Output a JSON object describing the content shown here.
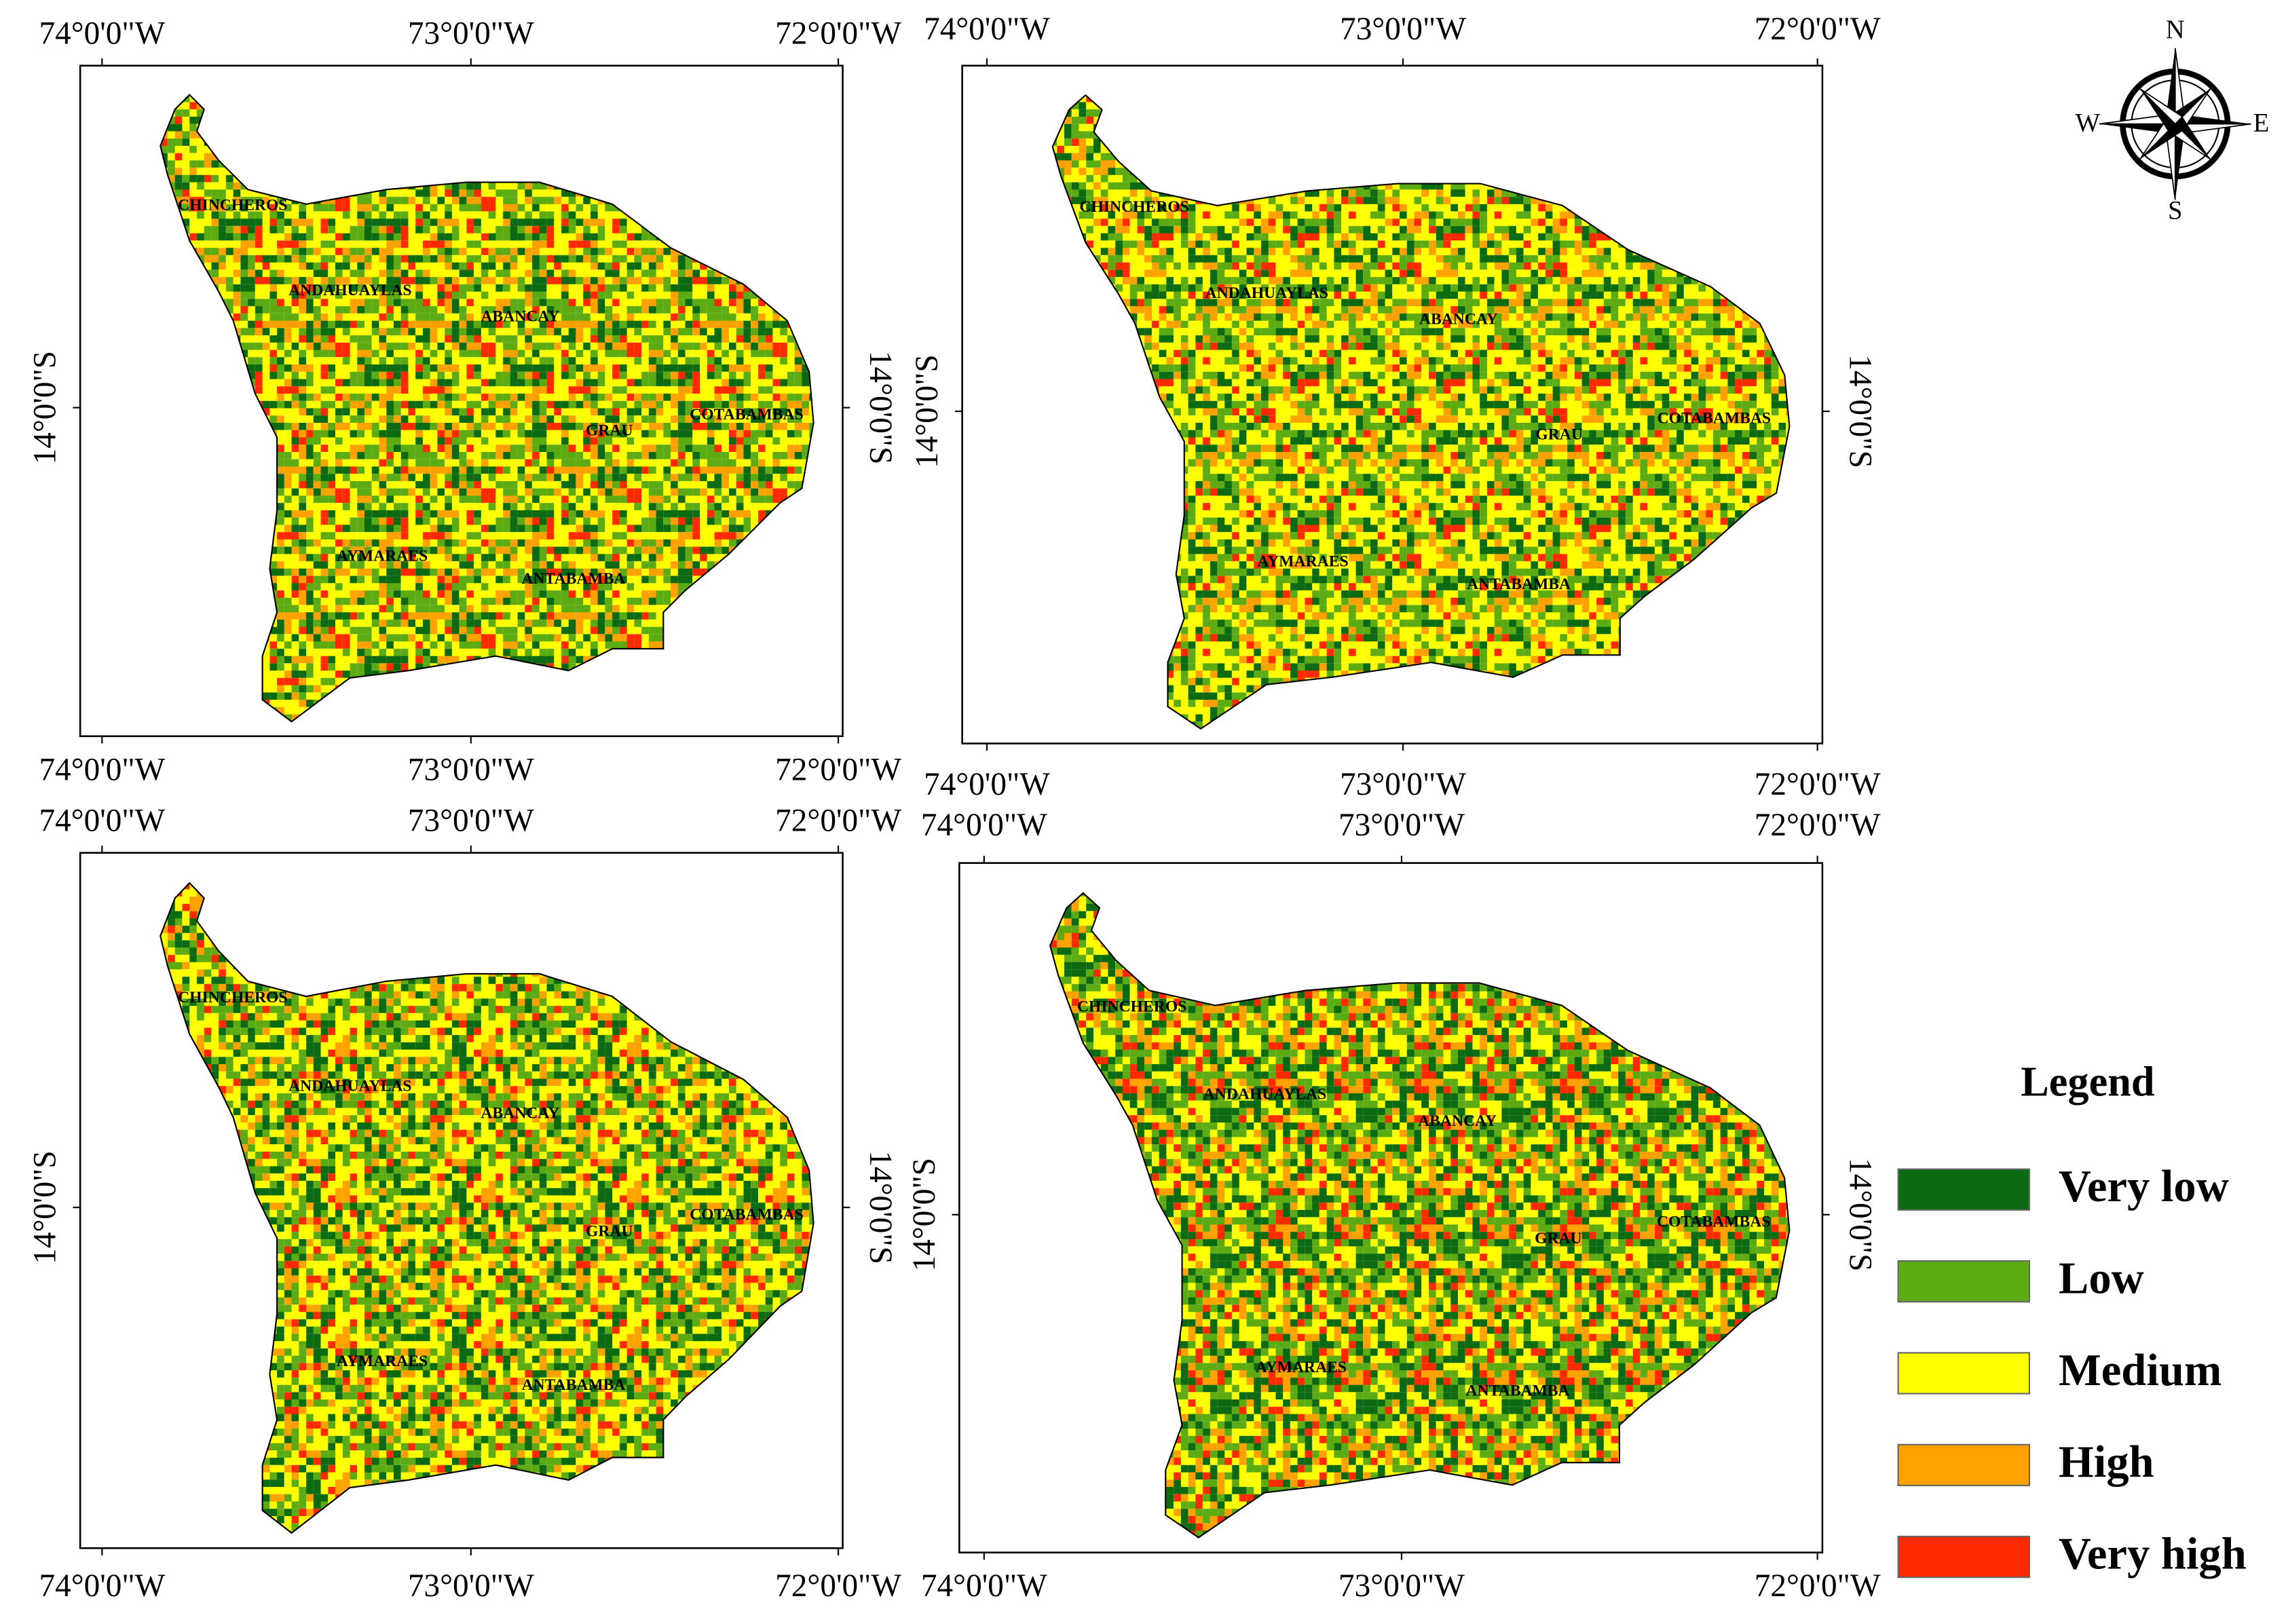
{
  "panels": [
    {
      "lon_top": [
        "74°0'0\"W",
        "73°0'0\"W",
        "72°0'0\"W"
      ],
      "lon_bottom": [
        "74°0'0\"W",
        "73°0'0\"W",
        "72°0'0\"W"
      ],
      "lat_left": "14°0'0\"S",
      "lat_right": "14°0'0\"S",
      "provinces": [
        "CHINCHEROS",
        "ANDAHUAYLAS",
        "ABANCAY",
        "GRAU",
        "COTABAMBAS",
        "AYMARAES",
        "ANTABAMBA"
      ]
    },
    {
      "lon_top": [
        "74°0'0\"W",
        "73°0'0\"W",
        "72°0'0\"W"
      ],
      "lon_bottom": [
        "74°0'0\"W",
        "73°0'0\"W",
        "72°0'0\"W"
      ],
      "lat_left": "14°0'0\"S",
      "lat_right": "14°0'0\"S",
      "provinces": [
        "CHINCHEROS",
        "ANDAHUAYLAS",
        "ABANCAY",
        "GRAU",
        "COTABAMBAS",
        "AYMARAES",
        "ANTABAMBA"
      ]
    },
    {
      "lon_top": [
        "74°0'0\"W",
        "73°0'0\"W",
        "72°0'0\"W"
      ],
      "lon_bottom": [
        "74°0'0\"W",
        "73°0'0\"W",
        "72°0'0\"W"
      ],
      "lat_left": "14°0'0\"S",
      "lat_right": "14°0'0\"S",
      "provinces": [
        "CHINCHEROS",
        "ANDAHUAYLAS",
        "ABANCAY",
        "GRAU",
        "COTABAMBAS",
        "AYMARAES",
        "ANTABAMBA"
      ]
    },
    {
      "lon_top": [
        "74°0'0\"W",
        "73°0'0\"W",
        "72°0'0\"W"
      ],
      "lon_bottom": [
        "74°0'0\"W",
        "73°0'0\"W",
        "72°0'0\"W"
      ],
      "lat_left": "14°0'0\"S",
      "lat_right": "14°0'0\"S",
      "provinces": [
        "CHINCHEROS",
        "ANDAHUAYLAS",
        "ABANCAY",
        "GRAU",
        "COTABAMBAS",
        "AYMARAES",
        "ANTABAMBA"
      ]
    }
  ],
  "compass": {
    "n": "N",
    "e": "E",
    "s": "S",
    "w": "W"
  },
  "legend": {
    "title": "Legend",
    "items": [
      {
        "label": "Very low",
        "color": "#0b6a12"
      },
      {
        "label": "Low",
        "color": "#5cab12"
      },
      {
        "label": "Medium",
        "color": "#ffff00"
      },
      {
        "label": "High",
        "color": "#ffa200"
      },
      {
        "label": "Very high",
        "color": "#ff2a00"
      }
    ]
  }
}
